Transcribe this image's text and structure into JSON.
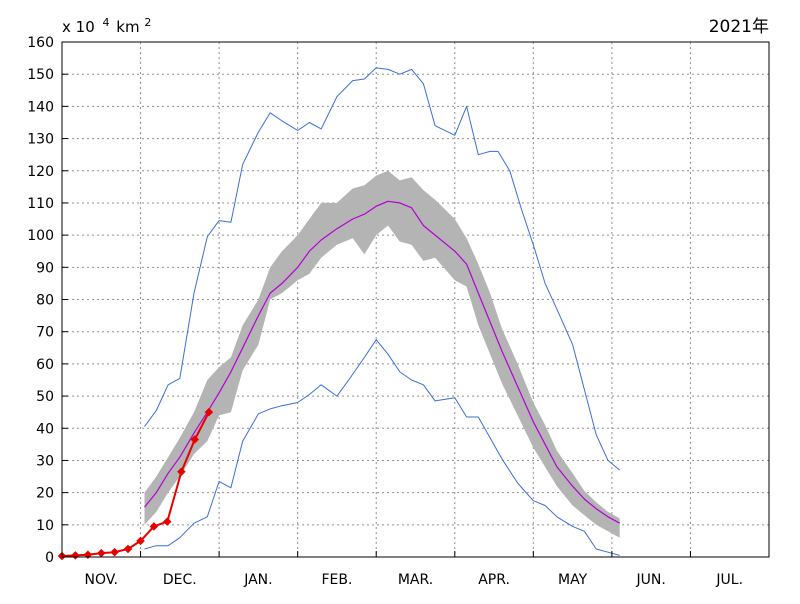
{
  "chart_data": {
    "type": "line",
    "title": "2021年",
    "unit_label": {
      "base": "x 10",
      "exp": "4",
      "unit": " km",
      "unit_exp": "2"
    },
    "ylim": [
      0,
      160
    ],
    "y_ticks": [
      0,
      10,
      20,
      30,
      40,
      50,
      60,
      70,
      80,
      90,
      100,
      110,
      120,
      130,
      140,
      150,
      160
    ],
    "xlim": [
      0,
      9
    ],
    "x_gridlines": [
      1,
      2,
      3,
      4,
      5,
      6,
      7,
      8
    ],
    "month_labels": [
      "NOV.",
      "DEC.",
      "JAN.",
      "FEB.",
      "MAR.",
      "APR.",
      "MAY",
      "JUN.",
      "JUL."
    ],
    "colors": {
      "max_min": "#3a6fd8",
      "mean": "#b400d6",
      "band": "#b4b4b4",
      "current": "#e60000",
      "grid": "#909090"
    },
    "series": [
      {
        "key": "max",
        "x": [
          1.05,
          1.2,
          1.35,
          1.5,
          1.68,
          1.85,
          2.0,
          2.15,
          2.3,
          2.5,
          2.65,
          2.8,
          3.0,
          3.15,
          3.3,
          3.5,
          3.7,
          3.85,
          4.0,
          4.15,
          4.3,
          4.45,
          4.6,
          4.75,
          5.0,
          5.15,
          5.3,
          5.45,
          5.55,
          5.7,
          5.85,
          6.0,
          6.15,
          6.3,
          6.5,
          6.65,
          6.8,
          6.95,
          7.1
        ],
        "y": [
          40.5,
          45.5,
          53.5,
          55.5,
          82,
          99.5,
          104.5,
          104,
          122,
          132,
          138,
          135.5,
          132.5,
          135,
          133,
          143,
          148,
          148.5,
          152,
          151.5,
          150,
          151.5,
          147,
          134,
          131,
          140,
          125,
          126,
          126,
          120,
          108,
          97,
          85,
          77,
          66,
          52,
          38,
          30,
          27
        ]
      },
      {
        "key": "min",
        "x": [
          1.05,
          1.2,
          1.35,
          1.5,
          1.68,
          1.85,
          2.0,
          2.15,
          2.3,
          2.5,
          2.65,
          2.8,
          3.0,
          3.15,
          3.3,
          3.5,
          3.65,
          3.85,
          4.0,
          4.15,
          4.3,
          4.45,
          4.6,
          4.75,
          5.0,
          5.15,
          5.3,
          5.45,
          5.6,
          5.8,
          6.0,
          6.15,
          6.3,
          6.5,
          6.65,
          6.8,
          6.95,
          7.1
        ],
        "y": [
          2.5,
          3.5,
          3.5,
          6.0,
          10.5,
          12.5,
          23.5,
          21.5,
          36,
          44.5,
          46,
          47,
          48,
          50.5,
          53.5,
          50,
          55,
          62,
          67.5,
          63,
          57.5,
          55,
          53.5,
          48.5,
          49.5,
          43.5,
          43.5,
          37,
          30.5,
          23,
          17.5,
          16,
          12.5,
          9.5,
          8,
          2.5,
          1.5,
          0.5
        ]
      },
      {
        "key": "mean",
        "x": [
          1.05,
          1.2,
          1.35,
          1.5,
          1.68,
          1.85,
          2.0,
          2.15,
          2.3,
          2.5,
          2.65,
          2.8,
          3.0,
          3.15,
          3.3,
          3.5,
          3.7,
          3.85,
          4.0,
          4.15,
          4.3,
          4.45,
          4.6,
          4.75,
          5.0,
          5.15,
          5.3,
          5.45,
          5.6,
          5.8,
          6.0,
          6.15,
          6.3,
          6.5,
          6.65,
          6.8,
          6.95,
          7.1
        ],
        "y": [
          15.5,
          20,
          26,
          31,
          38.5,
          45,
          51,
          57.5,
          65,
          75,
          82,
          85,
          90,
          95,
          98.5,
          102,
          105,
          106.5,
          109,
          110.5,
          110,
          108.5,
          103,
          100,
          95,
          91,
          82,
          73,
          64,
          53,
          42,
          35,
          28,
          22,
          18,
          15,
          12.5,
          10.5
        ]
      },
      {
        "key": "band_upper",
        "x": [
          1.05,
          1.2,
          1.35,
          1.5,
          1.68,
          1.85,
          2.0,
          2.15,
          2.3,
          2.5,
          2.65,
          2.8,
          3.0,
          3.15,
          3.3,
          3.5,
          3.7,
          3.85,
          4.0,
          4.15,
          4.3,
          4.45,
          4.6,
          4.75,
          5.0,
          5.15,
          5.3,
          5.45,
          5.6,
          5.8,
          6.0,
          6.15,
          6.3,
          6.5,
          6.65,
          6.8,
          6.95,
          7.1
        ],
        "y": [
          20,
          25,
          31,
          37,
          45,
          55,
          59,
          62,
          72,
          80,
          90,
          95,
          100,
          105,
          110,
          110,
          114.5,
          115.5,
          118.5,
          120,
          117,
          118,
          114,
          111,
          105,
          99,
          91,
          82,
          71,
          60,
          48,
          41,
          33,
          26,
          20.5,
          17,
          14,
          12
        ]
      },
      {
        "key": "band_lower",
        "x": [
          1.05,
          1.2,
          1.35,
          1.5,
          1.68,
          1.85,
          2.0,
          2.15,
          2.3,
          2.5,
          2.65,
          2.8,
          3.0,
          3.15,
          3.3,
          3.5,
          3.7,
          3.85,
          4.0,
          4.15,
          4.3,
          4.45,
          4.6,
          4.75,
          5.0,
          5.15,
          5.3,
          5.45,
          5.6,
          5.8,
          6.0,
          6.15,
          6.3,
          6.5,
          6.65,
          6.8,
          6.95,
          7.1
        ],
        "y": [
          10,
          14,
          20,
          25,
          32,
          36,
          44,
          45,
          58,
          66,
          80,
          82,
          86,
          88,
          93,
          97,
          99,
          94,
          100,
          103,
          98,
          97,
          92,
          93,
          86,
          84,
          72,
          63,
          54,
          44,
          34,
          28,
          22,
          16,
          13,
          10,
          8,
          6
        ]
      },
      {
        "key": "current",
        "x": [
          0.0,
          0.17,
          0.33,
          0.5,
          0.67,
          0.84,
          1.0,
          1.17,
          1.34,
          1.52,
          1.69,
          1.87
        ],
        "y": [
          0.3,
          0.5,
          0.7,
          1.2,
          1.5,
          2.5,
          5.0,
          9.5,
          11.0,
          26.5,
          36.5,
          45.0
        ]
      }
    ]
  }
}
